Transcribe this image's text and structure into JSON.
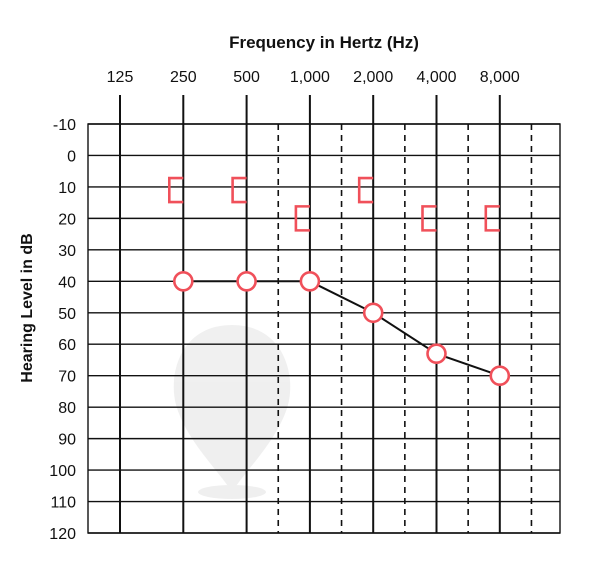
{
  "chart_data": {
    "type": "line",
    "title": "",
    "xlabel": "Frequency in Hertz (Hz)",
    "ylabel": "Hearing Level in dB",
    "x_tick_labels": [
      "125",
      "250",
      "500",
      "1,000",
      "2,000",
      "4,000",
      "8,000"
    ],
    "y_ticks": [
      -10,
      0,
      10,
      20,
      30,
      40,
      50,
      60,
      70,
      80,
      90,
      100,
      110,
      120
    ],
    "y_tick_labels": [
      "-10",
      "0",
      "10",
      "20",
      "30",
      "40",
      "50",
      "60",
      "70",
      "80",
      "90",
      "100",
      "110",
      "120"
    ],
    "ylim": [
      -10,
      120
    ],
    "y_inverted": true,
    "x_scale": "log2",
    "grid": true,
    "interoctave_gridlines_dashed": true,
    "series": [
      {
        "symbol": "circle",
        "color": "#f0505a",
        "connected": true,
        "points": [
          {
            "x": 250,
            "y": 40
          },
          {
            "x": 500,
            "y": 40
          },
          {
            "x": 1000,
            "y": 40
          },
          {
            "x": 2000,
            "y": 50
          },
          {
            "x": 4000,
            "y": 63
          },
          {
            "x": 8000,
            "y": 70
          }
        ]
      },
      {
        "symbol": "bracket",
        "color": "#f0505a",
        "connected": false,
        "points": [
          {
            "x": 250,
            "y": 11
          },
          {
            "x": 500,
            "y": 11
          },
          {
            "x": 1000,
            "y": 20
          },
          {
            "x": 2000,
            "y": 11
          },
          {
            "x": 4000,
            "y": 20
          },
          {
            "x": 8000,
            "y": 20
          }
        ]
      }
    ],
    "line_color": "#111111",
    "grid_color": "#111111"
  }
}
